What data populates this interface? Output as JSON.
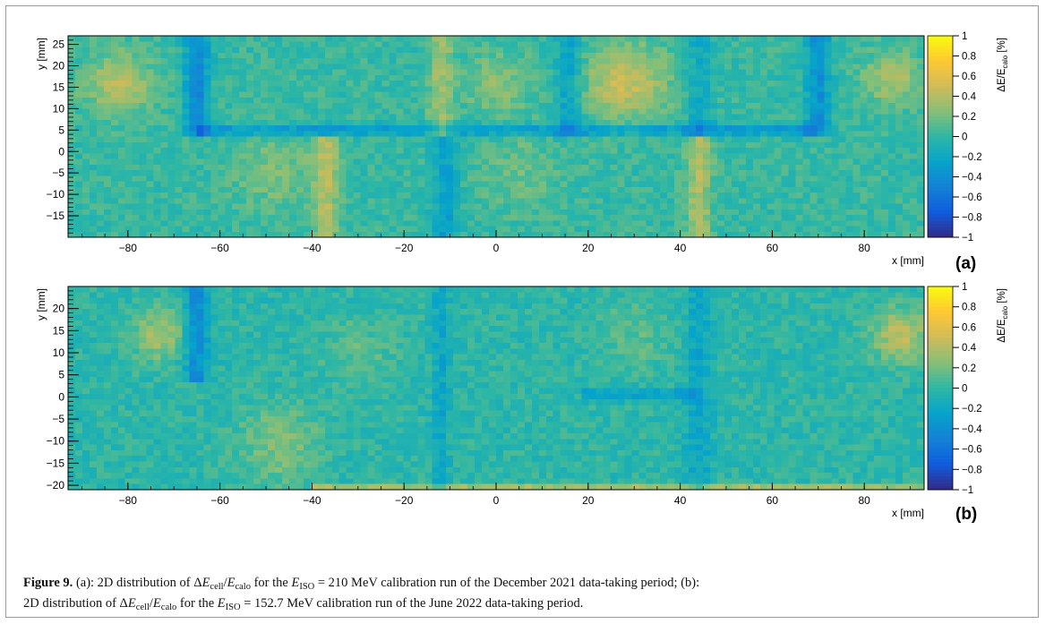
{
  "chart_data": [
    {
      "type": "heatmap",
      "panel_label": "(a)",
      "xlabel": "x [mm]",
      "ylabel": "y [mm]",
      "zlabel": "ΔE/E",
      "zlabel_sub": "calo",
      "zlabel_unit": "[%]",
      "xlim": [
        -93,
        93
      ],
      "ylim": [
        -20,
        27
      ],
      "zlim": [
        -1,
        1
      ],
      "x_ticks": [
        -80,
        -60,
        -40,
        -20,
        0,
        20,
        40,
        60,
        80
      ],
      "x_tick_labels": [
        "−80",
        "−60",
        "−40",
        "−20",
        "0",
        "20",
        "40",
        "60",
        "80"
      ],
      "y_ticks": [
        -15,
        -10,
        -5,
        0,
        5,
        10,
        15,
        20,
        25
      ],
      "y_tick_labels": [
        "−15",
        "−10",
        "−5",
        "0",
        "5",
        "10",
        "15",
        "20",
        "25"
      ],
      "z_ticks": [
        -1,
        -0.8,
        -0.6,
        -0.4,
        -0.2,
        0,
        0.2,
        0.4,
        0.6,
        0.8,
        1
      ],
      "z_tick_labels": [
        "−1",
        "−0.8",
        "−0.6",
        "−0.4",
        "−0.2",
        "0",
        "0.2",
        "0.4",
        "0.6",
        "0.8",
        "1"
      ],
      "colormap": [
        "#352a87",
        "#0f5cdd",
        "#1481d6",
        "#06a4ca",
        "#2eb7a4",
        "#87bf77",
        "#d1bb59",
        "#fec832",
        "#f9fb0e"
      ],
      "features": {
        "base_value": 0.02,
        "vertical_bands": [
          {
            "x": -65,
            "width": 3,
            "value": -0.45,
            "y_from": 3,
            "y_to": 27
          },
          {
            "x": -37,
            "width": 3,
            "value": 0.35,
            "y_from": -20,
            "y_to": 3
          },
          {
            "x": -12,
            "width": 3,
            "value": 0.3,
            "y_from": 3,
            "y_to": 27
          },
          {
            "x": -11,
            "width": 3,
            "value": -0.3,
            "y_from": -20,
            "y_to": 3
          },
          {
            "x": 16,
            "width": 3,
            "value": -0.3,
            "y_from": 3,
            "y_to": 27
          },
          {
            "x": 44,
            "width": 3,
            "value": 0.35,
            "y_from": -20,
            "y_to": 3
          },
          {
            "x": 44,
            "width": 3,
            "value": -0.2,
            "y_from": 3,
            "y_to": 27
          },
          {
            "x": 70,
            "width": 3,
            "value": -0.4,
            "y_from": 3,
            "y_to": 27
          }
        ],
        "horizontal_bands": [
          {
            "y": 5,
            "height": 1.5,
            "value": -0.35,
            "x_from": -65,
            "x_to": 70
          }
        ],
        "hotspots": [
          {
            "x": -82,
            "y": 16,
            "r": 7,
            "value": 0.4
          },
          {
            "x": 0,
            "y": 16,
            "r": 7,
            "value": 0.25
          },
          {
            "x": 28,
            "y": 16,
            "r": 9,
            "value": 0.45
          },
          {
            "x": 86,
            "y": 17,
            "r": 6,
            "value": 0.35
          },
          {
            "x": -48,
            "y": -5,
            "r": 9,
            "value": 0.2
          },
          {
            "x": 5,
            "y": -5,
            "r": 9,
            "value": 0.15
          }
        ]
      }
    },
    {
      "type": "heatmap",
      "panel_label": "(b)",
      "xlabel": "x [mm]",
      "ylabel": "y [mm]",
      "zlabel": "ΔE/E",
      "zlabel_sub": "calo",
      "zlabel_unit": "[%]",
      "xlim": [
        -93,
        93
      ],
      "ylim": [
        -21,
        25
      ],
      "zlim": [
        -1,
        1
      ],
      "x_ticks": [
        -80,
        -60,
        -40,
        -20,
        0,
        20,
        40,
        60,
        80
      ],
      "x_tick_labels": [
        "−80",
        "−60",
        "−40",
        "−20",
        "0",
        "20",
        "40",
        "60",
        "80"
      ],
      "y_ticks": [
        -20,
        -15,
        -10,
        -5,
        0,
        5,
        10,
        15,
        20
      ],
      "y_tick_labels": [
        "−20",
        "−15",
        "−10",
        "−5",
        "0",
        "5",
        "10",
        "15",
        "20"
      ],
      "z_ticks": [
        -1,
        -0.8,
        -0.6,
        -0.4,
        -0.2,
        0,
        0.2,
        0.4,
        0.6,
        0.8,
        1
      ],
      "z_tick_labels": [
        "−1",
        "−0.8",
        "−0.6",
        "−0.4",
        "−0.2",
        "0",
        "0.2",
        "0.4",
        "0.6",
        "0.8",
        "1"
      ],
      "colormap": [
        "#352a87",
        "#0f5cdd",
        "#1481d6",
        "#06a4ca",
        "#2eb7a4",
        "#87bf77",
        "#d1bb59",
        "#fec832",
        "#f9fb0e"
      ],
      "features": {
        "base_value": -0.02,
        "vertical_bands": [
          {
            "x": -65,
            "width": 3,
            "value": -0.4,
            "y_from": 3,
            "y_to": 25
          },
          {
            "x": -12,
            "width": 2,
            "value": -0.2,
            "y_from": -21,
            "y_to": 25
          },
          {
            "x": 44,
            "width": 3,
            "value": -0.2,
            "y_from": -21,
            "y_to": 25
          }
        ],
        "horizontal_bands": [
          {
            "y": 0.5,
            "height": 1.5,
            "value": -0.3,
            "x_from": 18,
            "x_to": 44
          },
          {
            "y": -20.3,
            "height": 0.8,
            "value": 0.35,
            "x_from": -40,
            "x_to": 93
          }
        ],
        "hotspots": [
          {
            "x": -73,
            "y": 14,
            "r": 6,
            "value": 0.35
          },
          {
            "x": -47,
            "y": -11,
            "r": 9,
            "value": 0.25
          },
          {
            "x": 88,
            "y": 14,
            "r": 6,
            "value": 0.45
          },
          {
            "x": -30,
            "y": 10,
            "r": 8,
            "value": 0.15
          },
          {
            "x": 30,
            "y": 14,
            "r": 8,
            "value": 0.15
          }
        ]
      }
    }
  ],
  "caption": {
    "label": "Figure 9.",
    "text_a1": " (a): 2D distribution of Δ",
    "cell_sub": "cell",
    "slash": "/",
    "calo_sub": "calo",
    "for_the": " for the ",
    "iso_sub": "ISO",
    "eq_a": " = 210 MeV calibration run of the December 2021 data-taking period; (b):",
    "text_b1": "2D distribution of Δ",
    "eq_b": " = 152.7 MeV calibration run of the June 2022 data-taking period.",
    "E": "E"
  }
}
